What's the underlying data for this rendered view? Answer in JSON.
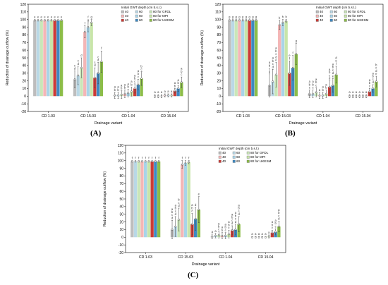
{
  "chart_data": [
    {
      "type": "bar",
      "panel_label": "(A)",
      "ylabel": "Reduction of drainage outflow (%)",
      "xlabel": "Drainage variant",
      "ylim": [
        -20,
        120
      ],
      "yticks": [
        -20,
        -10,
        0,
        10,
        20,
        30,
        40,
        50,
        60,
        70,
        80,
        90,
        100,
        110,
        120
      ],
      "grid": false,
      "legend_position": "top-right",
      "legend_title": "Initial GWT depth (cm b.s.l.)",
      "legend_entries": [
        {
          "marker": "40",
          "label": "40"
        },
        {
          "marker": "60",
          "label": "60"
        },
        {
          "marker": "80",
          "label": "80 for GFDL"
        },
        {
          "marker": "40",
          "label": "40"
        },
        {
          "marker": "60",
          "label": "60"
        },
        {
          "marker": "80",
          "label": "80 for MPI"
        },
        {
          "marker": "40",
          "label": "40"
        },
        {
          "marker": "60",
          "label": "60"
        },
        {
          "marker": "80",
          "label": "80 for UKESM"
        }
      ],
      "categories": [
        "CD 1.03",
        "CD 15.03",
        "CD 1.04",
        "CD 15.04"
      ],
      "series": [
        {
          "color": "#bdbdbd",
          "values": [
            99,
            22,
            1,
            0
          ],
          "err": [
            1,
            11,
            4,
            2
          ]
        },
        {
          "color": "#b9d8e6",
          "values": [
            99,
            27,
            1,
            0
          ],
          "err": [
            1,
            12,
            4,
            2
          ]
        },
        {
          "color": "#c9e6b8",
          "values": [
            99,
            37,
            2,
            0
          ],
          "err": [
            1,
            13,
            5,
            2
          ]
        },
        {
          "color": "#f4b6b6",
          "values": [
            99,
            84,
            3,
            1
          ],
          "err": [
            1,
            8,
            5,
            2
          ]
        },
        {
          "color": "#a8d4e8",
          "values": [
            99,
            90,
            4,
            1
          ],
          "err": [
            1,
            6,
            5,
            2
          ]
        },
        {
          "color": "#c8e5a9",
          "values": [
            99,
            96,
            6,
            1
          ],
          "err": [
            1,
            4,
            6,
            2
          ]
        },
        {
          "color": "#cc3b36",
          "values": [
            99,
            24,
            10,
            7
          ],
          "err": [
            1,
            13,
            6,
            3
          ]
        },
        {
          "color": "#3d89c2",
          "values": [
            99,
            30,
            15,
            10
          ],
          "err": [
            1,
            14,
            7,
            4
          ]
        },
        {
          "color": "#8cbd49",
          "values": [
            99,
            45,
            23,
            18
          ],
          "err": [
            1,
            14,
            9,
            7
          ]
        }
      ],
      "bar_labels": [
        [
          "e",
          "c\nd",
          "a\nb",
          "a"
        ],
        [
          "e",
          "c\nd",
          "a\nb",
          "a"
        ],
        [
          "e",
          "d",
          "a\nb",
          "a"
        ],
        [
          "e",
          "f",
          "a\nb",
          "a"
        ],
        [
          "e",
          "f\ng",
          "a\nb",
          "a"
        ],
        [
          "e",
          "g",
          "a\nb",
          "a"
        ],
        [
          "e",
          "c\nd",
          "a\nb\nc",
          "a\nb"
        ],
        [
          "e",
          "c\nd",
          "a\nb\nc",
          "a\nb"
        ],
        [
          "e",
          "f",
          "b\nc",
          "a\nb\nc"
        ]
      ]
    },
    {
      "type": "bar",
      "panel_label": "(B)",
      "ylabel": "Reduction of drainage outflow (%)",
      "xlabel": "Drainage variant",
      "ylim": [
        -20,
        120
      ],
      "yticks": [
        -20,
        -10,
        0,
        10,
        20,
        30,
        40,
        50,
        60,
        70,
        80,
        90,
        100,
        110,
        120
      ],
      "grid": false,
      "legend_position": "top-right",
      "legend_title": "Initial GWT depth (cm b.s.l.)",
      "legend_entries": [
        {
          "marker": "40",
          "label": "40"
        },
        {
          "marker": "60",
          "label": "60"
        },
        {
          "marker": "80",
          "label": "80 for GFDL"
        },
        {
          "marker": "40",
          "label": "40"
        },
        {
          "marker": "60",
          "label": "60"
        },
        {
          "marker": "80",
          "label": "80 for MPI"
        },
        {
          "marker": "40",
          "label": "40"
        },
        {
          "marker": "60",
          "label": "60"
        },
        {
          "marker": "80",
          "label": "80 for UKESM"
        }
      ],
      "categories": [
        "CD 1.03",
        "CD 15.03",
        "CD 1.04",
        "CD 15.04"
      ],
      "series": [
        {
          "color": "#bdbdbd",
          "values": [
            99,
            14,
            3,
            0
          ],
          "err": [
            1,
            15,
            5,
            2
          ]
        },
        {
          "color": "#b9d8e6",
          "values": [
            99,
            19,
            3,
            0
          ],
          "err": [
            1,
            16,
            5,
            2
          ]
        },
        {
          "color": "#c9e6b8",
          "values": [
            99,
            28,
            5,
            0
          ],
          "err": [
            1,
            16,
            6,
            2
          ]
        },
        {
          "color": "#f4b6b6",
          "values": [
            99,
            93,
            1,
            0
          ],
          "err": [
            1,
            6,
            4,
            2
          ]
        },
        {
          "color": "#a8d4e8",
          "values": [
            99,
            96,
            1,
            0
          ],
          "err": [
            1,
            4,
            4,
            2
          ]
        },
        {
          "color": "#c8e5a9",
          "values": [
            99,
            98,
            3,
            0
          ],
          "err": [
            1,
            2,
            5,
            2
          ]
        },
        {
          "color": "#cc3b36",
          "values": [
            99,
            30,
            12,
            6
          ],
          "err": [
            1,
            16,
            8,
            4
          ]
        },
        {
          "color": "#3d89c2",
          "values": [
            99,
            37,
            14,
            10
          ],
          "err": [
            1,
            16,
            9,
            5
          ]
        },
        {
          "color": "#8cbd49",
          "values": [
            99,
            55,
            28,
            19
          ],
          "err": [
            1,
            14,
            11,
            7
          ]
        }
      ],
      "bar_labels": [
        [
          "g",
          "a\nb\nc\nd",
          "a\nb\nc",
          "a"
        ],
        [
          "g",
          "a\nb\nc\nd",
          "a\nb\nc",
          "a"
        ],
        [
          "g",
          "a\nb\nc\nd\ne",
          "a\nb\nc",
          "a"
        ],
        [
          "g",
          "h",
          "a",
          "a"
        ],
        [
          "g",
          "h",
          "a\nb",
          "a"
        ],
        [
          "g",
          "h",
          "a\nb",
          "a"
        ],
        [
          "g",
          "e\nf",
          "a\nb\nc\nd",
          "a\nb\nc"
        ],
        [
          "g",
          "f",
          "a\nb\nc\nd\ne",
          "a\nb\nc\nd"
        ],
        [
          "g",
          "g",
          "d\ne\nf",
          "b\nc\nd\ne"
        ]
      ]
    },
    {
      "type": "bar",
      "panel_label": "(C)",
      "ylabel": "Reduction of drainage outflow (%)",
      "xlabel": "Drainage variant",
      "ylim": [
        -20,
        120
      ],
      "yticks": [
        -20,
        -10,
        0,
        10,
        20,
        30,
        40,
        50,
        60,
        70,
        80,
        90,
        100,
        110,
        120
      ],
      "grid": false,
      "legend_position": "top-right",
      "legend_title": "Initial GWT depth (cm b.s.l.)",
      "legend_entries": [
        {
          "marker": "40",
          "label": "40"
        },
        {
          "marker": "60",
          "label": "60"
        },
        {
          "marker": "80",
          "label": "80 for GFDL"
        },
        {
          "marker": "40",
          "label": "40"
        },
        {
          "marker": "60",
          "label": "60"
        },
        {
          "marker": "80",
          "label": "80 for MPI"
        },
        {
          "marker": "40",
          "label": "40"
        },
        {
          "marker": "60",
          "label": "60"
        },
        {
          "marker": "80",
          "label": "80 for UKESM"
        }
      ],
      "categories": [
        "CD 1.03",
        "CD 15.03",
        "CD 1.04",
        "CD 15.04"
      ],
      "series": [
        {
          "color": "#bdbdbd",
          "values": [
            99,
            10,
            1,
            0
          ],
          "err": [
            1,
            12,
            3,
            1
          ]
        },
        {
          "color": "#b9d8e6",
          "values": [
            99,
            14,
            2,
            0
          ],
          "err": [
            1,
            13,
            3,
            1
          ]
        },
        {
          "color": "#c9e6b8",
          "values": [
            99,
            23,
            3,
            0
          ],
          "err": [
            1,
            15,
            4,
            1
          ]
        },
        {
          "color": "#f4b6b6",
          "values": [
            99,
            95,
            2,
            0
          ],
          "err": [
            1,
            5,
            4,
            1
          ]
        },
        {
          "color": "#a8d4e8",
          "values": [
            99,
            97,
            2,
            0
          ],
          "err": [
            1,
            3,
            4,
            1
          ]
        },
        {
          "color": "#c8e5a9",
          "values": [
            99,
            98,
            4,
            1
          ],
          "err": [
            1,
            2,
            5,
            2
          ]
        },
        {
          "color": "#cc3b36",
          "values": [
            99,
            17,
            9,
            6
          ],
          "err": [
            1,
            14,
            6,
            3
          ]
        },
        {
          "color": "#3d89c2",
          "values": [
            99,
            24,
            10,
            7
          ],
          "err": [
            1,
            15,
            7,
            4
          ]
        },
        {
          "color": "#8cbd49",
          "values": [
            99,
            36,
            17,
            14
          ],
          "err": [
            1,
            17,
            10,
            7
          ]
        }
      ],
      "bar_labels": [
        [
          "f",
          "a\nb\nc\nd",
          "a",
          "a"
        ],
        [
          "f",
          "a\nb\nc\nd",
          "a",
          "a"
        ],
        [
          "f",
          "b\nc\nd",
          "a\nb\nc",
          "a"
        ],
        [
          "f",
          "f",
          "a\nb",
          "a"
        ],
        [
          "f",
          "f",
          "a\nb\nc",
          "a"
        ],
        [
          "f",
          "f",
          "a\nb\nc",
          "a"
        ],
        [
          "f",
          "a\nb\nc",
          "a\nb\nc\nd",
          "a\nb\nc"
        ],
        [
          "f",
          "d",
          "a\nb\nc\nd",
          "a\nb\nc"
        ],
        [
          "f",
          "e",
          "a\nb\nc\nd",
          "a\nb\nc\nd"
        ]
      ]
    }
  ]
}
